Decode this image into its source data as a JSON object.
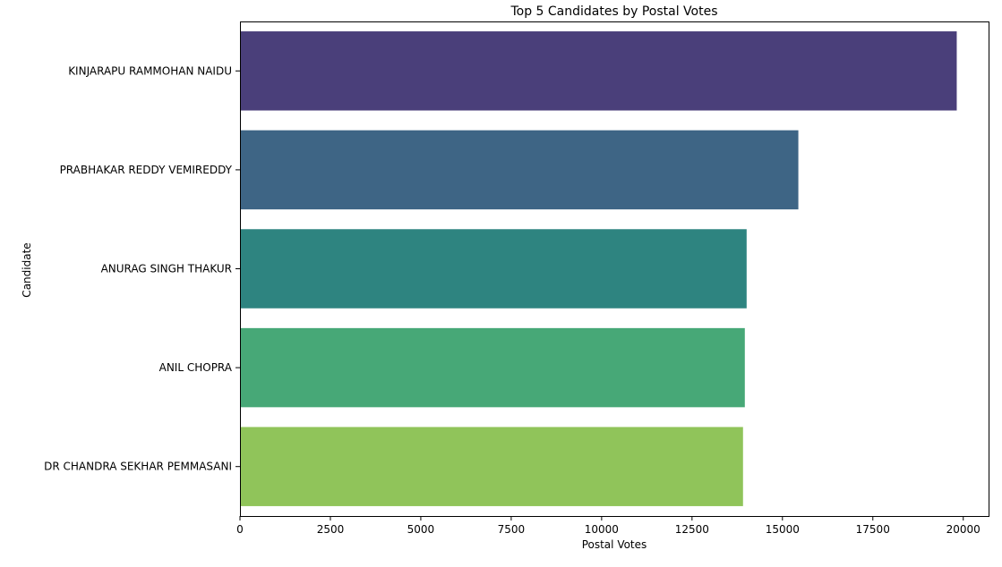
{
  "chart_data": {
    "type": "bar",
    "orientation": "horizontal",
    "title": "Top 5 Candidates by Postal Votes",
    "xlabel": "Postal Votes",
    "ylabel": "Candidate",
    "categories": [
      "KINJARAPU RAMMOHAN NAIDU",
      "PRABHAKAR REDDY VEMIREDDY",
      "ANURAG SINGH THAKUR",
      "ANIL CHOPRA",
      "DR CHANDRA SEKHAR PEMMASANI"
    ],
    "values": [
      19820,
      15440,
      14010,
      13960,
      13910
    ],
    "xlim": [
      0,
      20700
    ],
    "xticks": [
      0,
      2500,
      5000,
      7500,
      10000,
      12500,
      15000,
      17500,
      20000
    ],
    "xtick_labels": [
      "0",
      "2500",
      "5000",
      "7500",
      "10000",
      "12500",
      "15000",
      "17500",
      "20000"
    ],
    "colors": [
      "#4a3f7a",
      "#3e6585",
      "#2e8480",
      "#47a877",
      "#90c45a"
    ],
    "grid": false,
    "legend": "none"
  }
}
